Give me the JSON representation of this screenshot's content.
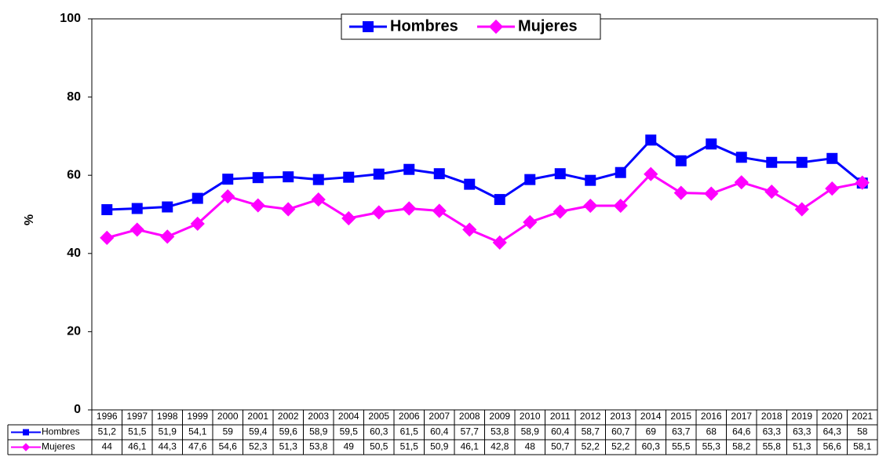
{
  "chart_data": {
    "type": "line",
    "ylabel": "%",
    "categories": [
      "1996",
      "1997",
      "1998",
      "1999",
      "2000",
      "2001",
      "2002",
      "2003",
      "2004",
      "2005",
      "2006",
      "2007",
      "2008",
      "2009",
      "2010",
      "2011",
      "2012",
      "2013",
      "2014",
      "2015",
      "2016",
      "2017",
      "2018",
      "2019",
      "2020",
      "2021"
    ],
    "series": [
      {
        "name": "Hombres",
        "color": "#0000ff",
        "marker": "square",
        "values": [
          51.2,
          51.5,
          51.9,
          54.1,
          59,
          59.4,
          59.6,
          58.9,
          59.5,
          60.3,
          61.5,
          60.4,
          57.7,
          53.8,
          58.9,
          60.4,
          58.7,
          60.7,
          69,
          63.7,
          68,
          64.6,
          63.3,
          63.3,
          64.3,
          58
        ],
        "value_labels": [
          "51,2",
          "51,5",
          "51,9",
          "54,1",
          "59",
          "59,4",
          "59,6",
          "58,9",
          "59,5",
          "60,3",
          "61,5",
          "60,4",
          "57,7",
          "53,8",
          "58,9",
          "60,4",
          "58,7",
          "60,7",
          "69",
          "63,7",
          "68",
          "64,6",
          "63,3",
          "63,3",
          "64,3",
          "58"
        ]
      },
      {
        "name": "Mujeres",
        "color": "#ff00ff",
        "marker": "diamond",
        "values": [
          44,
          46.1,
          44.3,
          47.6,
          54.6,
          52.3,
          51.3,
          53.8,
          49,
          50.5,
          51.5,
          50.9,
          46.1,
          42.8,
          48,
          50.7,
          52.2,
          52.2,
          60.3,
          55.5,
          55.3,
          58.2,
          55.8,
          51.3,
          56.6,
          58.1
        ],
        "value_labels": [
          "44",
          "46,1",
          "44,3",
          "47,6",
          "54,6",
          "52,3",
          "51,3",
          "53,8",
          "49",
          "50,5",
          "51,5",
          "50,9",
          "46,1",
          "42,8",
          "48",
          "50,7",
          "52,2",
          "52,2",
          "60,3",
          "55,5",
          "55,3",
          "58,2",
          "55,8",
          "51,3",
          "56,6",
          "58,1"
        ]
      }
    ],
    "ylim": [
      0,
      100
    ],
    "yticks": [
      0,
      20,
      40,
      60,
      80,
      100
    ],
    "grid": false,
    "legend": "top"
  }
}
